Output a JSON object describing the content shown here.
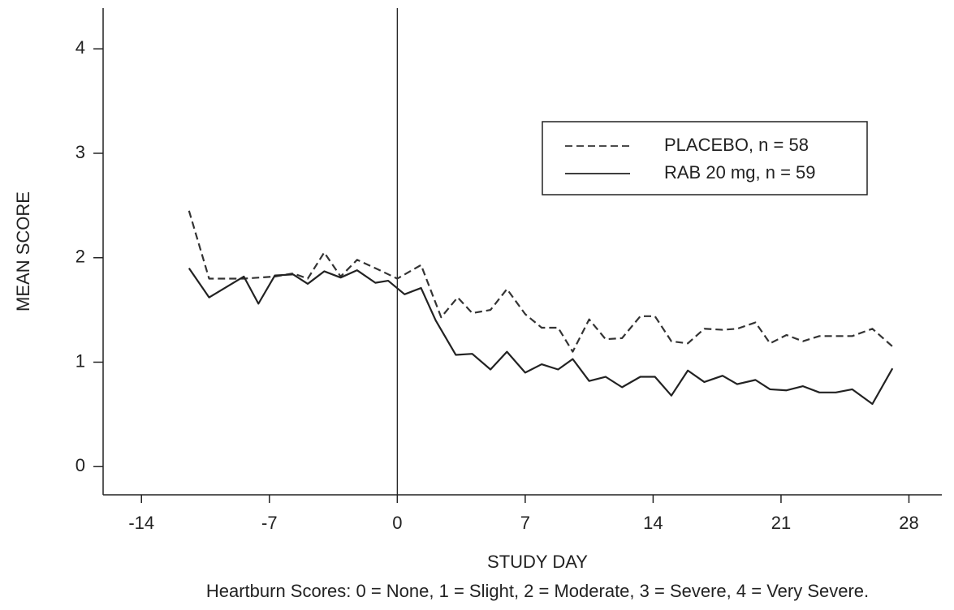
{
  "chart_data": {
    "type": "line",
    "xlabel": "STUDY DAY",
    "ylabel": "MEAN SCORE",
    "note": "Heartburn Scores: 0 = None, 1 = Slight, 2 = Moderate, 3 = Severe, 4 = Very Severe.",
    "xlim": [
      -16.1,
      29.8
    ],
    "ylim": [
      -0.27,
      4.39
    ],
    "xticks": [
      -14,
      -7,
      0,
      7,
      14,
      21,
      28
    ],
    "yticks": [
      0,
      1,
      2,
      3,
      4
    ],
    "vline": 0,
    "legend": "upper right",
    "series": [
      {
        "name": "PLACEBO, n = 58",
        "color": "#333333",
        "dash": "9,5",
        "x": [
          -11.4,
          -10.3,
          -8.4,
          -6.7,
          -5.7,
          -4.9,
          -4.0,
          -3.1,
          -2.2,
          -1.2,
          0,
          1.3,
          2.4,
          3.3,
          4.1,
          5.1,
          6.0,
          7.0,
          7.9,
          8.8,
          9.6,
          10.5,
          11.4,
          12.3,
          13.3,
          14.1,
          15.0,
          15.9,
          16.8,
          17.8,
          18.6,
          19.6,
          20.4,
          21.3,
          22.2,
          23.1,
          24.0,
          24.9,
          26.0,
          27.1
        ],
        "values": [
          2.45,
          1.8,
          1.8,
          1.82,
          1.85,
          1.8,
          2.05,
          1.82,
          1.98,
          1.9,
          1.8,
          1.93,
          1.43,
          1.62,
          1.47,
          1.5,
          1.7,
          1.46,
          1.33,
          1.33,
          1.1,
          1.41,
          1.22,
          1.23,
          1.44,
          1.44,
          1.2,
          1.18,
          1.32,
          1.31,
          1.32,
          1.38,
          1.18,
          1.26,
          1.2,
          1.25,
          1.25,
          1.25,
          1.32,
          1.15
        ]
      },
      {
        "name": "RAB 20 mg, n = 59",
        "color": "#222222",
        "dash": "none",
        "x": [
          -11.4,
          -10.3,
          -8.4,
          -7.6,
          -6.7,
          -5.7,
          -4.9,
          -4.0,
          -3.1,
          -2.2,
          -1.2,
          -0.5,
          0.4,
          1.3,
          2.1,
          3.2,
          4.1,
          5.1,
          6.0,
          7.0,
          7.9,
          8.8,
          9.6,
          10.5,
          11.4,
          12.3,
          13.3,
          14.1,
          15.0,
          15.9,
          16.8,
          17.8,
          18.6,
          19.6,
          20.4,
          21.3,
          22.2,
          23.1,
          24.0,
          24.9,
          26.0,
          27.1
        ],
        "values": [
          1.9,
          1.62,
          1.82,
          1.56,
          1.83,
          1.84,
          1.75,
          1.87,
          1.81,
          1.88,
          1.76,
          1.78,
          1.65,
          1.71,
          1.4,
          1.07,
          1.08,
          0.93,
          1.1,
          0.9,
          0.98,
          0.93,
          1.03,
          0.82,
          0.86,
          0.76,
          0.86,
          0.86,
          0.68,
          0.92,
          0.81,
          0.87,
          0.79,
          0.83,
          0.74,
          0.73,
          0.77,
          0.71,
          0.71,
          0.74,
          0.6,
          0.94
        ]
      }
    ]
  }
}
